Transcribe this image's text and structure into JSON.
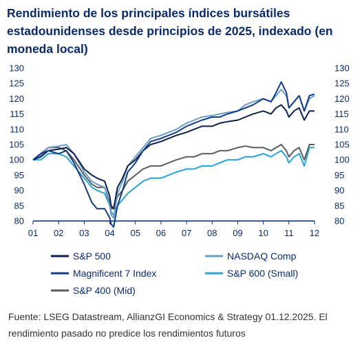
{
  "title": "Rendimiento de los principales índices bursátiles estadounidenses desde principios de 2025, indexado (en moneda local)",
  "source": "Fuente: LSEG Datastream, AllianzGI Economics & Strategy 01.12.2025. El rendimiento pasado no predice los rendimientos futuros",
  "chart_data": {
    "type": "line",
    "title": "Rendimiento de los principales índices bursátiles estadounidenses desde principios de 2025, indexado (en moneda local)",
    "xlabel": "",
    "ylabel": "",
    "x_ticks": [
      "01",
      "02",
      "03",
      "04",
      "05",
      "06",
      "07",
      "08",
      "09",
      "10",
      "11",
      "12"
    ],
    "ylim": [
      80,
      130
    ],
    "y_ticks": [
      80,
      85,
      90,
      95,
      100,
      105,
      110,
      115,
      120,
      125,
      130
    ],
    "y_ticks_right": [
      80,
      85,
      90,
      95,
      100,
      105,
      110,
      115,
      120,
      125,
      130
    ],
    "grid": false,
    "legend_placement": "bottom",
    "series": [
      {
        "name": "S&P 500",
        "color": "#0b1f4d",
        "x": [
          1.0,
          1.3,
          1.6,
          2.0,
          2.3,
          2.6,
          3.0,
          3.3,
          3.5,
          3.8,
          4.0,
          4.05,
          4.15,
          4.3,
          4.5,
          4.7,
          5.0,
          5.3,
          5.6,
          6.0,
          6.3,
          6.6,
          7.0,
          7.3,
          7.6,
          8.0,
          8.3,
          8.6,
          9.0,
          9.3,
          9.6,
          10.0,
          10.3,
          10.5,
          10.7,
          10.9,
          11.0,
          11.2,
          11.4,
          11.6,
          11.8,
          12.0
        ],
        "y": [
          100,
          101,
          103,
          103.5,
          104,
          102,
          97,
          95,
          94,
          93,
          88,
          85,
          84,
          91,
          94,
          98,
          100,
          103,
          105,
          106,
          107,
          108,
          109,
          110,
          111,
          111,
          112,
          112.5,
          113,
          114,
          115,
          116,
          115,
          117,
          118,
          116,
          114,
          116,
          117,
          113,
          116,
          116
        ]
      },
      {
        "name": "NASDAQ Comp",
        "color": "#6a9ec4",
        "x": [
          1.0,
          1.3,
          1.6,
          2.0,
          2.3,
          2.6,
          3.0,
          3.3,
          3.5,
          3.8,
          4.0,
          4.05,
          4.15,
          4.3,
          4.5,
          4.7,
          5.0,
          5.3,
          5.6,
          6.0,
          6.3,
          6.6,
          7.0,
          7.3,
          7.6,
          8.0,
          8.3,
          8.6,
          9.0,
          9.3,
          9.6,
          10.0,
          10.3,
          10.5,
          10.7,
          10.9,
          11.0,
          11.2,
          11.4,
          11.6,
          11.8,
          12.0
        ],
        "y": [
          100,
          101.5,
          104,
          104.5,
          105,
          102,
          96,
          93,
          92,
          91,
          85,
          82,
          81,
          89,
          93,
          98,
          101,
          104,
          107,
          108,
          109,
          110,
          112,
          113,
          114,
          114.5,
          115,
          115.5,
          116,
          118,
          119,
          120,
          119,
          121,
          123,
          121,
          117,
          119,
          121,
          116,
          120,
          121
        ]
      },
      {
        "name": "Magnificent 7 Index",
        "color": "#103a8a",
        "x": [
          1.0,
          1.3,
          1.6,
          2.0,
          2.3,
          2.6,
          3.0,
          3.3,
          3.5,
          3.8,
          4.0,
          4.05,
          4.15,
          4.3,
          4.5,
          4.7,
          5.0,
          5.3,
          5.6,
          6.0,
          6.3,
          6.6,
          7.0,
          7.3,
          7.6,
          8.0,
          8.3,
          8.6,
          9.0,
          9.3,
          9.6,
          10.0,
          10.3,
          10.5,
          10.7,
          10.9,
          11.0,
          11.2,
          11.4,
          11.6,
          11.8,
          12.0
        ],
        "y": [
          100,
          102,
          103,
          102,
          103,
          99,
          92,
          86,
          84,
          84,
          81,
          79,
          78,
          85,
          90,
          96,
          99,
          103,
          106,
          107,
          108,
          109,
          111,
          112,
          113,
          114,
          114,
          115,
          116,
          117,
          118,
          120,
          119,
          122,
          125.5,
          122,
          117,
          119,
          121,
          116,
          121,
          121.5
        ]
      },
      {
        "name": "S&P 600 (Small)",
        "color": "#26a2d8",
        "x": [
          1.0,
          1.3,
          1.6,
          2.0,
          2.3,
          2.6,
          3.0,
          3.3,
          3.5,
          3.8,
          4.0,
          4.05,
          4.15,
          4.3,
          4.5,
          4.7,
          5.0,
          5.3,
          5.6,
          6.0,
          6.3,
          6.6,
          7.0,
          7.3,
          7.6,
          8.0,
          8.3,
          8.6,
          9.0,
          9.3,
          9.6,
          10.0,
          10.3,
          10.5,
          10.7,
          10.9,
          11.0,
          11.2,
          11.4,
          11.6,
          11.8,
          12.0
        ],
        "y": [
          100,
          100,
          102,
          102,
          101,
          98,
          94,
          91,
          90,
          89,
          85,
          83,
          82,
          85,
          87,
          89,
          91,
          93,
          94,
          94,
          95,
          96,
          97,
          97,
          98,
          98,
          99,
          100,
          100,
          101,
          101,
          102,
          101,
          102,
          103,
          101,
          99,
          101,
          102,
          98,
          104,
          104
        ]
      },
      {
        "name": "S&P 400 (Mid)",
        "color": "#5a5a5a",
        "x": [
          1.0,
          1.3,
          1.6,
          2.0,
          2.3,
          2.6,
          3.0,
          3.3,
          3.5,
          3.8,
          4.0,
          4.05,
          4.15,
          4.3,
          4.5,
          4.7,
          5.0,
          5.3,
          5.6,
          6.0,
          6.3,
          6.6,
          7.0,
          7.3,
          7.6,
          8.0,
          8.3,
          8.6,
          9.0,
          9.3,
          9.6,
          10.0,
          10.3,
          10.5,
          10.7,
          10.9,
          11.0,
          11.2,
          11.4,
          11.6,
          11.8,
          12.0
        ],
        "y": [
          100,
          102,
          104,
          104,
          103,
          100,
          95,
          92,
          91,
          91,
          86,
          84,
          84,
          88,
          90,
          93,
          95,
          97,
          98,
          98,
          99,
          100,
          101,
          101,
          102,
          102,
          103,
          103,
          104,
          104.5,
          104,
          104,
          103,
          104,
          105,
          103,
          101,
          103,
          104,
          100,
          105,
          105
        ]
      }
    ]
  }
}
